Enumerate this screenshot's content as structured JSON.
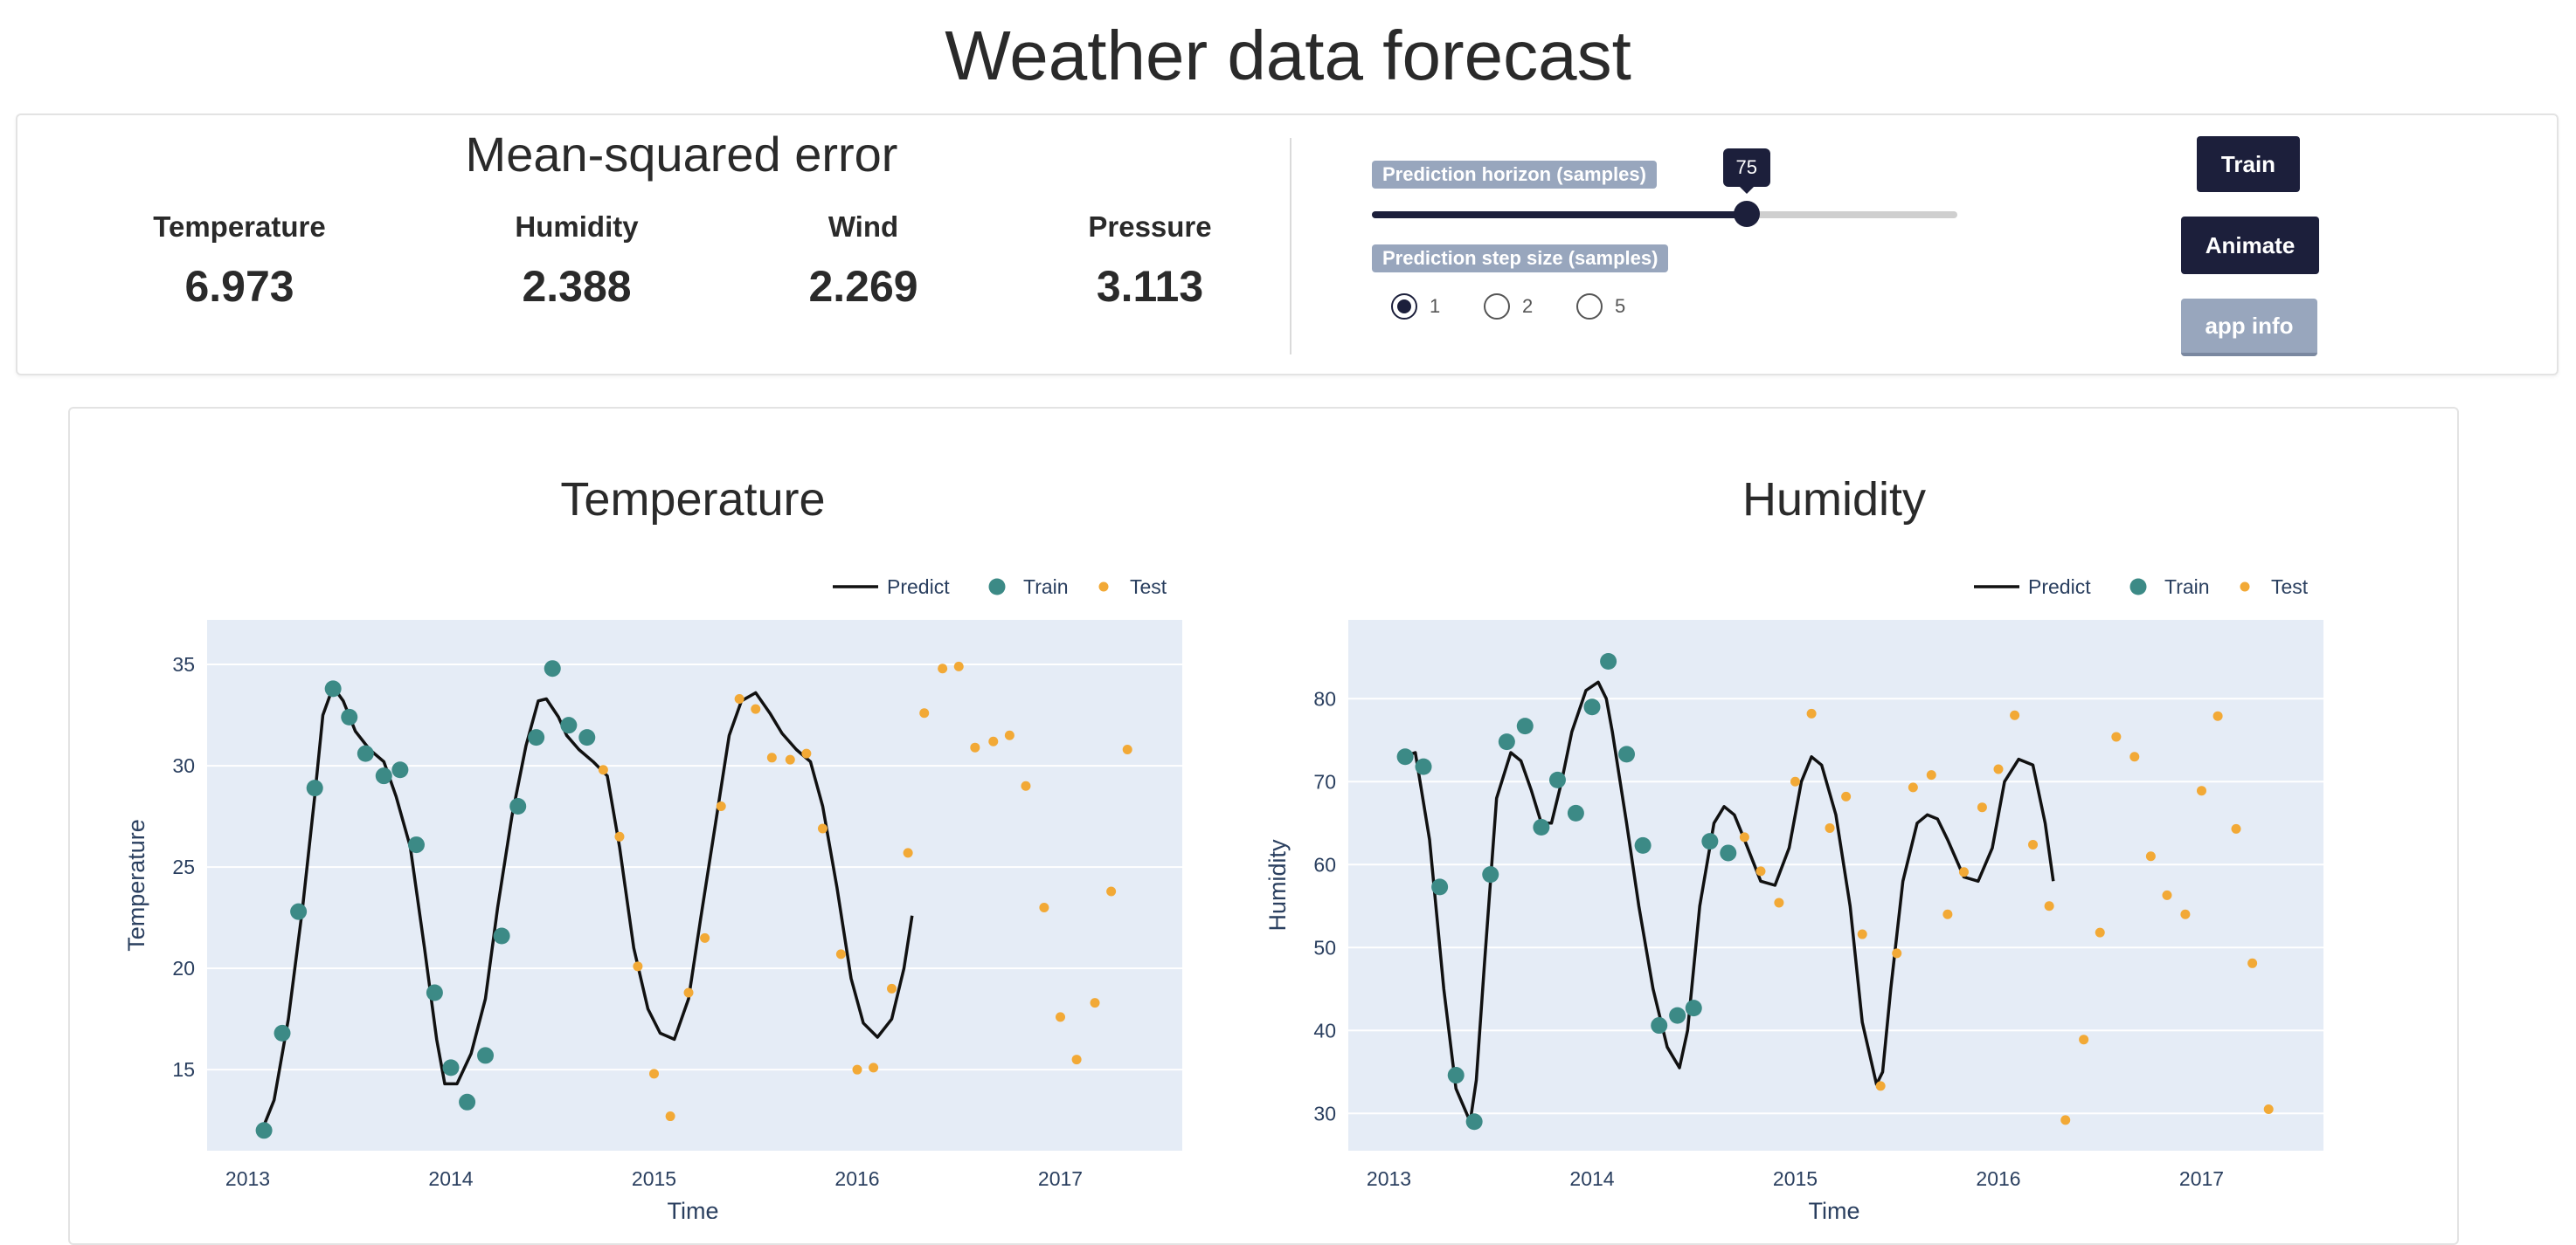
{
  "page": {
    "title": "Weather data forecast"
  },
  "metrics_panel": {
    "title": "Mean-squared error",
    "items": [
      {
        "label": "Temperature",
        "value": "6.973"
      },
      {
        "label": "Humidity",
        "value": "2.388"
      },
      {
        "label": "Wind",
        "value": "2.269"
      },
      {
        "label": "Pressure",
        "value": "3.113"
      }
    ]
  },
  "controls": {
    "horizon_label": "Prediction horizon (samples)",
    "horizon_value": "75",
    "horizon_fraction": 0.64,
    "step_label": "Prediction step size (samples)",
    "step_options": [
      "1",
      "2",
      "5"
    ],
    "step_selected": "1",
    "train_button": "Train",
    "animate_button": "Animate",
    "info_button": "app info"
  },
  "colors": {
    "predict": "#111111",
    "train": "#3c8a86",
    "test": "#f2a936",
    "plot_bg": "#e5ecf6",
    "dark_accent": "#1c1f3b"
  },
  "chart_data": [
    {
      "type": "line",
      "title": "Temperature",
      "xlabel": "Time",
      "ylabel": "Temperature",
      "xlim": [
        2012.8,
        2017.6
      ],
      "ylim": [
        11,
        37.2
      ],
      "xticks": [
        2013,
        2014,
        2015,
        2016,
        2017
      ],
      "xtick_labels": [
        "2013",
        "2014",
        "2015",
        "2016",
        "2017"
      ],
      "yticks": [
        15,
        20,
        25,
        30,
        35
      ],
      "ytick_labels": [
        "15",
        "20",
        "25",
        "30",
        "35"
      ],
      "grid": true,
      "legend": {
        "placement": "top-right",
        "entries": [
          "Predict",
          "Train",
          "Test"
        ]
      },
      "series": [
        {
          "name": "Predict",
          "kind": "line",
          "x": [
            2013.07,
            2013.13,
            2013.2,
            2013.27,
            2013.33,
            2013.37,
            2013.42,
            2013.47,
            2013.53,
            2013.6,
            2013.67,
            2013.73,
            2013.8,
            2013.87,
            2013.93,
            2013.97,
            2014.03,
            2014.1,
            2014.17,
            2014.23,
            2014.3,
            2014.37,
            2014.43,
            2014.47,
            2014.53,
            2014.57,
            2014.63,
            2014.7,
            2014.77,
            2014.83,
            2014.9,
            2014.97,
            2015.03,
            2015.1,
            2015.17,
            2015.23,
            2015.3,
            2015.37,
            2015.43,
            2015.5,
            2015.57,
            2015.63,
            2015.7,
            2015.77,
            2015.83,
            2015.9,
            2015.97,
            2016.03,
            2016.1,
            2016.17,
            2016.23,
            2016.27
          ],
          "y": [
            12.0,
            13.5,
            17.5,
            23.0,
            28.5,
            32.5,
            33.9,
            33.2,
            31.7,
            30.8,
            30.2,
            28.5,
            26.0,
            21.0,
            16.5,
            14.3,
            14.3,
            15.8,
            18.5,
            23.0,
            27.5,
            31.0,
            33.2,
            33.3,
            32.4,
            31.5,
            30.8,
            30.2,
            29.5,
            26.0,
            21.0,
            18.0,
            16.8,
            16.5,
            18.5,
            22.5,
            27.0,
            31.5,
            33.2,
            33.6,
            32.6,
            31.6,
            30.8,
            30.2,
            28.0,
            24.0,
            19.5,
            17.3,
            16.6,
            17.5,
            20.0,
            22.6
          ]
        },
        {
          "name": "Train",
          "kind": "markers",
          "x": [
            2013.08,
            2013.17,
            2013.25,
            2013.33,
            2013.42,
            2013.5,
            2013.58,
            2013.67,
            2013.75,
            2013.83,
            2013.92,
            2014.0,
            2014.08,
            2014.17,
            2014.25,
            2014.33,
            2014.42,
            2014.5,
            2014.58,
            2014.67
          ],
          "y": [
            12.0,
            16.8,
            22.8,
            28.9,
            33.8,
            32.4,
            30.6,
            29.5,
            29.8,
            26.1,
            18.8,
            15.1,
            13.4,
            15.7,
            21.6,
            28.0,
            31.4,
            34.8,
            32.0,
            31.4
          ]
        },
        {
          "name": "Test",
          "kind": "markers",
          "x": [
            2014.75,
            2014.83,
            2014.92,
            2015.0,
            2015.08,
            2015.17,
            2015.25,
            2015.33,
            2015.42,
            2015.5,
            2015.58,
            2015.67,
            2015.75,
            2015.83,
            2015.92,
            2016.0,
            2016.08,
            2016.17,
            2016.25,
            2016.33,
            2016.42,
            2016.5,
            2016.58,
            2016.67,
            2016.75,
            2016.83,
            2016.92,
            2017.0,
            2017.08,
            2017.17,
            2017.25,
            2017.33
          ],
          "y": [
            29.8,
            26.5,
            20.1,
            14.8,
            12.7,
            18.8,
            21.5,
            28.0,
            33.3,
            32.8,
            30.4,
            30.3,
            30.6,
            26.9,
            20.7,
            15.0,
            15.1,
            19.0,
            25.7,
            32.6,
            34.8,
            34.9,
            30.9,
            31.2,
            31.5,
            29.0,
            23.0,
            17.6,
            15.5,
            18.3,
            23.8,
            30.8
          ]
        }
      ]
    },
    {
      "type": "line",
      "title": "Humidity",
      "xlabel": "Time",
      "ylabel": "Humidity",
      "xlim": [
        2012.8,
        2017.6
      ],
      "ylim": [
        25.5,
        89.5
      ],
      "xticks": [
        2013,
        2014,
        2015,
        2016,
        2017
      ],
      "xtick_labels": [
        "2013",
        "2014",
        "2015",
        "2016",
        "2017"
      ],
      "yticks": [
        30,
        40,
        50,
        60,
        70,
        80
      ],
      "ytick_labels": [
        "30",
        "40",
        "50",
        "60",
        "70",
        "80"
      ],
      "grid": true,
      "legend": {
        "placement": "top-right",
        "entries": [
          "Predict",
          "Train",
          "Test"
        ]
      },
      "series": [
        {
          "name": "Predict",
          "kind": "line",
          "x": [
            2013.07,
            2013.13,
            2013.2,
            2013.27,
            2013.33,
            2013.4,
            2013.43,
            2013.47,
            2013.53,
            2013.6,
            2013.65,
            2013.7,
            2013.75,
            2013.8,
            2013.85,
            2013.9,
            2013.97,
            2014.03,
            2014.07,
            2014.1,
            2014.17,
            2014.23,
            2014.3,
            2014.37,
            2014.43,
            2014.47,
            2014.53,
            2014.6,
            2014.65,
            2014.7,
            2014.75,
            2014.83,
            2014.9,
            2014.97,
            2015.03,
            2015.08,
            2015.13,
            2015.2,
            2015.27,
            2015.33,
            2015.4,
            2015.43,
            2015.47,
            2015.53,
            2015.6,
            2015.65,
            2015.7,
            2015.75,
            2015.83,
            2015.9,
            2015.97,
            2016.03,
            2016.1,
            2016.17,
            2016.23,
            2016.27
          ],
          "y": [
            73.0,
            73.5,
            63.0,
            45.0,
            33.0,
            29.0,
            34.0,
            48.0,
            68.0,
            73.5,
            72.5,
            69.0,
            65.0,
            65.0,
            70.0,
            76.0,
            81.0,
            82.0,
            80.0,
            76.0,
            65.0,
            55.0,
            45.0,
            38.0,
            35.5,
            40.0,
            55.0,
            65.0,
            67.0,
            66.0,
            63.0,
            58.0,
            57.5,
            62.0,
            70.0,
            73.0,
            72.0,
            66.0,
            55.0,
            41.0,
            33.5,
            35.0,
            45.0,
            58.0,
            65.0,
            66.0,
            65.5,
            63.0,
            58.5,
            58.0,
            62.0,
            70.0,
            72.7,
            72.0,
            65.0,
            58.0
          ]
        },
        {
          "name": "Train",
          "kind": "markers",
          "x": [
            2013.08,
            2013.17,
            2013.25,
            2013.33,
            2013.42,
            2013.5,
            2013.58,
            2013.67,
            2013.75,
            2013.83,
            2013.92,
            2014.0,
            2014.08,
            2014.17,
            2014.25,
            2014.33,
            2014.42,
            2014.5,
            2014.58,
            2014.67
          ],
          "y": [
            73.0,
            71.8,
            57.3,
            34.6,
            29.0,
            58.8,
            74.8,
            76.7,
            64.5,
            70.2,
            66.2,
            79.0,
            84.5,
            73.3,
            62.3,
            40.6,
            41.8,
            42.7,
            62.8,
            61.4
          ]
        },
        {
          "name": "Test",
          "kind": "markers",
          "x": [
            2014.75,
            2014.83,
            2014.92,
            2015.0,
            2015.08,
            2015.17,
            2015.25,
            2015.33,
            2015.42,
            2015.5,
            2015.58,
            2015.67,
            2015.75,
            2015.83,
            2015.92,
            2016.0,
            2016.08,
            2016.17,
            2016.25,
            2016.33,
            2016.42,
            2016.5,
            2016.58,
            2016.67,
            2016.75,
            2016.83,
            2016.92,
            2017.0,
            2017.08,
            2017.17,
            2017.25,
            2017.33
          ],
          "y": [
            63.3,
            59.2,
            55.4,
            70.0,
            78.2,
            64.4,
            68.2,
            51.6,
            33.3,
            49.3,
            69.3,
            70.8,
            54.0,
            59.1,
            66.9,
            71.5,
            78.0,
            62.4,
            55.0,
            29.2,
            38.9,
            51.8,
            75.4,
            73.0,
            61.0,
            56.3,
            54.0,
            68.9,
            77.9,
            64.3,
            48.1,
            30.5
          ]
        }
      ]
    }
  ]
}
